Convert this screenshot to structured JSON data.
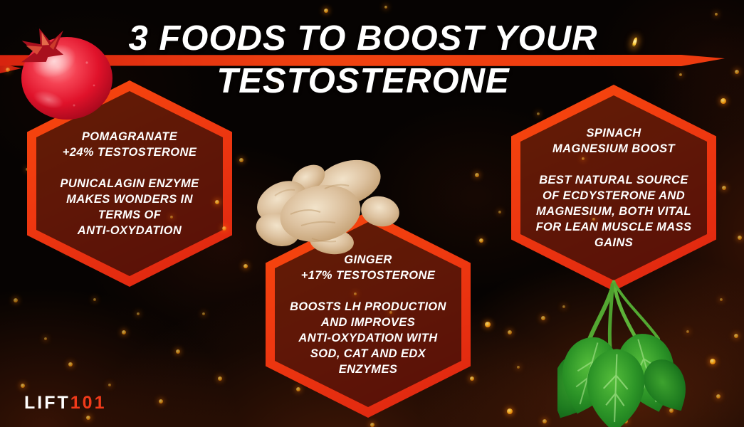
{
  "title": {
    "line1": "3 FOODS TO BOOST YOUR",
    "line2": "TESTOSTERONE"
  },
  "cards": [
    {
      "food": "pomegranate",
      "heading": [
        "POMAGRANATE",
        "+24% TESTOSTERONE"
      ],
      "body": [
        "PUNICALAGIN ENZYME",
        "MAKES WONDERS IN",
        "TERMS OF",
        "ANTI-OXYDATION"
      ]
    },
    {
      "food": "ginger",
      "heading": [
        "GINGER",
        "+17% TESTOSTERONE"
      ],
      "body": [
        "BOOSTS LH PRODUCTION",
        "AND IMPROVES",
        "ANTI-OXYDATION WITH",
        "SOD, CAT AND EDX",
        "ENZYMES"
      ]
    },
    {
      "food": "spinach",
      "heading": [
        "SPINACH",
        "MAGNESIUM BOOST"
      ],
      "body": [
        "BEST NATURAL SOURCE",
        "OF ECDYSTERONE AND",
        "MAGNESIUM, BOTH VITAL",
        "FOR LEAN MUSCLE MASS",
        "GAINS"
      ]
    }
  ],
  "images": [
    {
      "name": "pomegranate-image"
    },
    {
      "name": "ginger-image"
    },
    {
      "name": "spinach-image"
    }
  ],
  "logo": {
    "white": "LIFT",
    "red": "101"
  },
  "colors": {
    "accent_red": "#ee3a0f",
    "ember_orange": "#ffb21e",
    "text_white": "#ffffff",
    "logo_red": "#f03a1a",
    "background": "#060302"
  }
}
